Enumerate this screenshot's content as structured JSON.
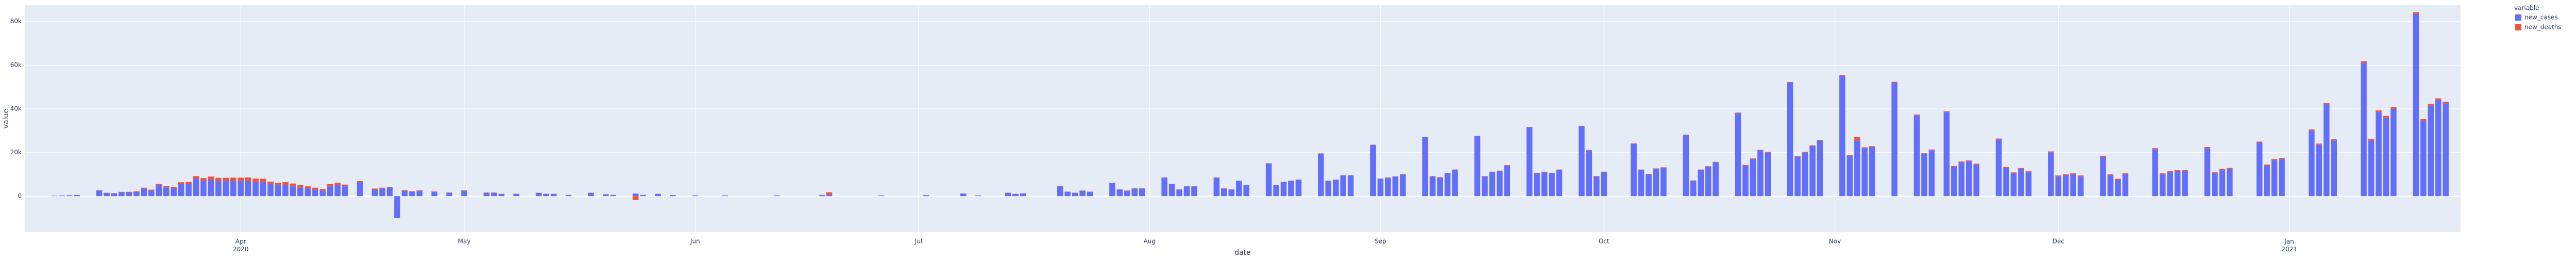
{
  "chart_data": {
    "type": "bar",
    "barmode": "relative",
    "x_label": "date",
    "y_label": "value",
    "legend_title": "variable",
    "legend_position": "right",
    "grid": true,
    "xlim": [
      "2020-03-03",
      "2021-01-24"
    ],
    "xticks": [
      {
        "value": "2020-04-01",
        "label": "Apr\n2020"
      },
      {
        "value": "2020-05-01",
        "label": "May"
      },
      {
        "value": "2020-06-01",
        "label": "Jun"
      },
      {
        "value": "2020-07-01",
        "label": "Jul"
      },
      {
        "value": "2020-08-01",
        "label": "Aug"
      },
      {
        "value": "2020-09-01",
        "label": "Sep"
      },
      {
        "value": "2020-10-01",
        "label": "Oct"
      },
      {
        "value": "2020-11-01",
        "label": "Nov"
      },
      {
        "value": "2020-12-01",
        "label": "Dec"
      },
      {
        "value": "2021-01-01",
        "label": "Jan\n2021"
      }
    ],
    "ylim": [
      -16500,
      87500
    ],
    "yticks": [
      0,
      {
        "value": 20000,
        "label": "20k"
      },
      {
        "value": 40000,
        "label": "40k"
      },
      {
        "value": 60000,
        "label": "60k"
      },
      {
        "value": 80000,
        "label": "80k"
      }
    ],
    "x": [
      "2020-03-07",
      "2020-03-08",
      "2020-03-09",
      "2020-03-10",
      "2020-03-13",
      "2020-03-14",
      "2020-03-15",
      "2020-03-16",
      "2020-03-17",
      "2020-03-18",
      "2020-03-19",
      "2020-03-20",
      "2020-03-21",
      "2020-03-22",
      "2020-03-23",
      "2020-03-24",
      "2020-03-25",
      "2020-03-26",
      "2020-03-27",
      "2020-03-28",
      "2020-03-29",
      "2020-03-30",
      "2020-03-31",
      "2020-04-01",
      "2020-04-02",
      "2020-04-03",
      "2020-04-04",
      "2020-04-05",
      "2020-04-06",
      "2020-04-07",
      "2020-04-08",
      "2020-04-09",
      "2020-04-10",
      "2020-04-11",
      "2020-04-12",
      "2020-04-13",
      "2020-04-14",
      "2020-04-15",
      "2020-04-17",
      "2020-04-19",
      "2020-04-20",
      "2020-04-21",
      "2020-04-22",
      "2020-04-23",
      "2020-04-24",
      "2020-04-25",
      "2020-04-27",
      "2020-04-29",
      "2020-05-01",
      "2020-05-04",
      "2020-05-05",
      "2020-05-06",
      "2020-05-08",
      "2020-05-11",
      "2020-05-12",
      "2020-05-13",
      "2020-05-15",
      "2020-05-18",
      "2020-05-20",
      "2020-05-21",
      "2020-05-24",
      "2020-05-25",
      "2020-05-27",
      "2020-05-29",
      "2020-06-01",
      "2020-06-05",
      "2020-06-12",
      "2020-06-18",
      "2020-06-19",
      "2020-06-26",
      "2020-07-02",
      "2020-07-07",
      "2020-07-09",
      "2020-07-13",
      "2020-07-14",
      "2020-07-15",
      "2020-07-20",
      "2020-07-21",
      "2020-07-22",
      "2020-07-23",
      "2020-07-24",
      "2020-07-27",
      "2020-07-28",
      "2020-07-29",
      "2020-07-30",
      "2020-07-31",
      "2020-08-03",
      "2020-08-04",
      "2020-08-05",
      "2020-08-06",
      "2020-08-07",
      "2020-08-10",
      "2020-08-11",
      "2020-08-12",
      "2020-08-13",
      "2020-08-14",
      "2020-08-17",
      "2020-08-18",
      "2020-08-19",
      "2020-08-20",
      "2020-08-21",
      "2020-08-24",
      "2020-08-25",
      "2020-08-26",
      "2020-08-27",
      "2020-08-28",
      "2020-08-31",
      "2020-09-01",
      "2020-09-02",
      "2020-09-03",
      "2020-09-04",
      "2020-09-07",
      "2020-09-08",
      "2020-09-09",
      "2020-09-10",
      "2020-09-11",
      "2020-09-14",
      "2020-09-15",
      "2020-09-16",
      "2020-09-17",
      "2020-09-18",
      "2020-09-21",
      "2020-09-22",
      "2020-09-23",
      "2020-09-24",
      "2020-09-25",
      "2020-09-28",
      "2020-09-29",
      "2020-09-30",
      "2020-10-01",
      "2020-10-05",
      "2020-10-06",
      "2020-10-07",
      "2020-10-08",
      "2020-10-09",
      "2020-10-12",
      "2020-10-13",
      "2020-10-14",
      "2020-10-15",
      "2020-10-16",
      "2020-10-19",
      "2020-10-20",
      "2020-10-21",
      "2020-10-22",
      "2020-10-23",
      "2020-10-26",
      "2020-10-27",
      "2020-10-28",
      "2020-10-29",
      "2020-10-30",
      "2020-11-02",
      "2020-11-03",
      "2020-11-04",
      "2020-11-05",
      "2020-11-06",
      "2020-11-09",
      "2020-11-12",
      "2020-11-13",
      "2020-11-14",
      "2020-11-16",
      "2020-11-17",
      "2020-11-18",
      "2020-11-19",
      "2020-11-20",
      "2020-11-23",
      "2020-11-24",
      "2020-11-25",
      "2020-11-26",
      "2020-11-27",
      "2020-11-30",
      "2020-12-01",
      "2020-12-02",
      "2020-12-03",
      "2020-12-04",
      "2020-12-07",
      "2020-12-08",
      "2020-12-09",
      "2020-12-10",
      "2020-12-14",
      "2020-12-15",
      "2020-12-16",
      "2020-12-17",
      "2020-12-18",
      "2020-12-21",
      "2020-12-22",
      "2020-12-23",
      "2020-12-24",
      "2020-12-28",
      "2020-12-29",
      "2020-12-30",
      "2020-12-31",
      "2021-01-04",
      "2021-01-05",
      "2021-01-06",
      "2021-01-07",
      "2021-01-11",
      "2021-01-12",
      "2021-01-13",
      "2021-01-14",
      "2021-01-15",
      "2021-01-18",
      "2021-01-19",
      "2021-01-20",
      "2021-01-21",
      "2021-01-22"
    ],
    "series": [
      {
        "name": "new_cases",
        "color": "#636efa",
        "values": [
          200,
          300,
          400,
          500,
          2600,
          1500,
          1200,
          1800,
          1700,
          2000,
          3500,
          2500,
          5000,
          4000,
          3500,
          5500,
          5500,
          8000,
          7000,
          7500,
          7000,
          7000,
          7000,
          7000,
          7000,
          6500,
          6500,
          5500,
          5000,
          5000,
          4500,
          4000,
          3500,
          3000,
          2500,
          4500,
          5000,
          4500,
          6500,
          3000,
          3500,
          4000,
          -10000,
          2500,
          2000,
          2500,
          2000,
          1500,
          2500,
          1500,
          1500,
          1000,
          1000,
          1500,
          1000,
          1000,
          500,
          1500,
          800,
          500,
          1200,
          500,
          1000,
          400,
          300,
          300,
          300,
          500,
          600,
          300,
          400,
          1200,
          300,
          1500,
          1000,
          1200,
          4500,
          2000,
          1500,
          2500,
          2000,
          6000,
          3000,
          2500,
          3500,
          3500,
          8500,
          5500,
          3000,
          4500,
          4500,
          8500,
          3500,
          3000,
          7000,
          5000,
          15000,
          5000,
          6500,
          7000,
          7500,
          19500,
          7000,
          7500,
          9500,
          9500,
          23500,
          8000,
          8500,
          9000,
          10000,
          27000,
          9000,
          8500,
          10500,
          12000,
          27500,
          9000,
          11000,
          11500,
          14000,
          31500,
          10500,
          11000,
          10500,
          12000,
          32000,
          21000,
          9000,
          11000,
          24000,
          12000,
          10000,
          12500,
          13000,
          28000,
          7000,
          12000,
          13500,
          15500,
          38000,
          14000,
          17000,
          21000,
          20000,
          52000,
          18000,
          20000,
          23000,
          25500,
          55000,
          18500,
          25500,
          22000,
          22500,
          52000,
          37000,
          19500,
          21000,
          38500,
          13500,
          15500,
          16000,
          14500,
          26000,
          13000,
          10500,
          12500,
          11000,
          20000,
          9000,
          9500,
          10000,
          9000,
          18000,
          9500,
          7500,
          10000,
          21500,
          10000,
          11000,
          11500,
          11500,
          22000,
          10500,
          12000,
          12500,
          24500,
          14000,
          16500,
          17000,
          30000,
          23500,
          42000,
          25500,
          61000,
          25500,
          38500,
          36000,
          40000,
          83500,
          34500,
          41500,
          44000,
          42500
        ]
      },
      {
        "name": "new_deaths",
        "color": "#ef553b",
        "values": [
          0,
          0,
          0,
          0,
          100,
          100,
          200,
          200,
          300,
          300,
          400,
          500,
          600,
          700,
          800,
          900,
          1000,
          1200,
          1300,
          1500,
          1400,
          1400,
          1500,
          1500,
          1600,
          1600,
          1500,
          1200,
          1100,
          1400,
          1300,
          1200,
          1000,
          900,
          800,
          1000,
          1200,
          800,
          400,
          500,
          400,
          300,
          0,
          300,
          300,
          200,
          200,
          200,
          200,
          200,
          200,
          100,
          100,
          100,
          100,
          100,
          100,
          100,
          100,
          100,
          -1800,
          100,
          100,
          100,
          50,
          50,
          50,
          50,
          1200,
          50,
          50,
          50,
          50,
          100,
          100,
          100,
          100,
          100,
          100,
          100,
          100,
          100,
          100,
          100,
          100,
          100,
          100,
          100,
          100,
          100,
          100,
          100,
          100,
          100,
          100,
          100,
          100,
          100,
          100,
          100,
          100,
          100,
          100,
          100,
          100,
          100,
          100,
          100,
          100,
          100,
          100,
          200,
          200,
          200,
          200,
          200,
          200,
          200,
          200,
          200,
          200,
          200,
          200,
          200,
          200,
          200,
          200,
          200,
          200,
          200,
          200,
          200,
          200,
          200,
          200,
          200,
          200,
          200,
          200,
          200,
          300,
          300,
          300,
          300,
          300,
          300,
          300,
          300,
          300,
          300,
          400,
          400,
          1500,
          400,
          400,
          400,
          400,
          400,
          400,
          400,
          400,
          400,
          400,
          400,
          400,
          400,
          400,
          400,
          400,
          500,
          500,
          500,
          500,
          500,
          500,
          500,
          500,
          500,
          500,
          500,
          500,
          500,
          500,
          500,
          500,
          500,
          500,
          500,
          500,
          500,
          500,
          600,
          600,
          600,
          600,
          800,
          800,
          800,
          800,
          800,
          800,
          800,
          800,
          800,
          800
        ]
      }
    ]
  }
}
